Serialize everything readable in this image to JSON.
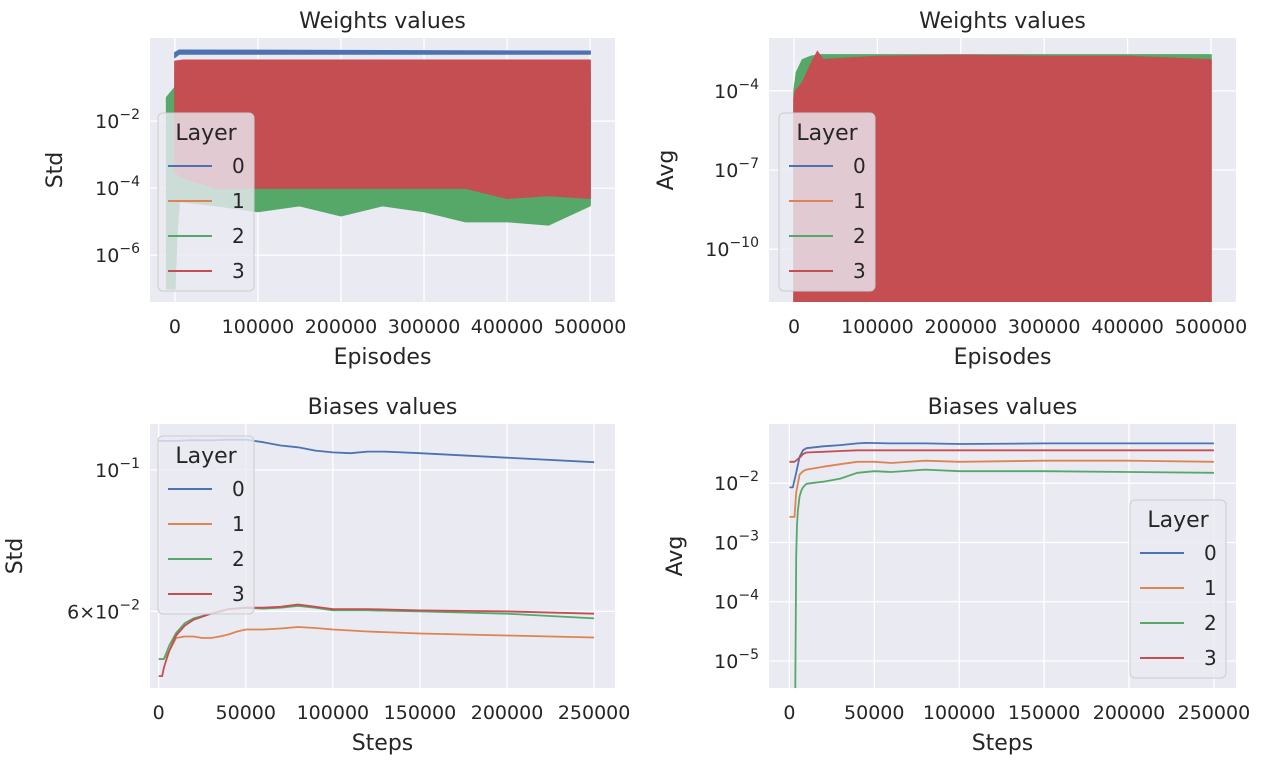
{
  "chart_data": [
    {
      "type": "area",
      "title": "Weights values",
      "xlabel": "Episodes",
      "ylabel": "Std",
      "yscale": "log",
      "xlim": [
        -30000,
        530000
      ],
      "ylim": [
        4e-08,
        3
      ],
      "grid": true,
      "x_ticks": [
        {
          "value": 0,
          "label": "0"
        },
        {
          "value": 100000,
          "label": "100000"
        },
        {
          "value": 200000,
          "label": "200000"
        },
        {
          "value": 300000,
          "label": "300000"
        },
        {
          "value": 400000,
          "label": "400000"
        },
        {
          "value": 500000,
          "label": "500000"
        }
      ],
      "y_ticks": [
        {
          "value": 0.01,
          "base": "10",
          "exp": "−2"
        },
        {
          "value": 0.0001,
          "base": "10",
          "exp": "−4"
        },
        {
          "value": 1e-06,
          "base": "10",
          "exp": "−6"
        }
      ],
      "legend": {
        "title": "Layer",
        "placement": "center-left"
      },
      "series": [
        {
          "name": "0",
          "color": "#4c72b0",
          "mode": "band",
          "x": [
            0,
            5000,
            500000
          ],
          "low": [
            0.8,
            1.0,
            1.0
          ],
          "high": [
            1.1,
            1.3,
            1.2
          ]
        },
        {
          "name": "1",
          "color": "#dd8452",
          "mode": "band",
          "x": [
            0,
            500000
          ],
          "low": [
            0.02,
            0.05
          ],
          "high": [
            0.3,
            0.5
          ]
        },
        {
          "name": "2",
          "color": "#55a868",
          "mode": "band",
          "x": [
            -10000,
            0,
            2000,
            5000,
            50000,
            100000,
            150000,
            200000,
            250000,
            300000,
            350000,
            400000,
            450000,
            500000
          ],
          "low": [
            1e-07,
            1e-07,
            3e-06,
            4e-05,
            3e-05,
            2e-05,
            3e-05,
            1.5e-05,
            3e-05,
            2e-05,
            1e-05,
            1e-05,
            8e-06,
            3e-05
          ],
          "high": [
            0.05,
            0.1,
            0.2,
            0.3,
            0.3,
            0.3,
            0.3,
            0.3,
            0.3,
            0.3,
            0.3,
            0.3,
            0.3,
            0.3
          ]
        },
        {
          "name": "3",
          "color": "#c44e52",
          "mode": "band",
          "x": [
            0,
            10000,
            50000,
            100000,
            150000,
            200000,
            250000,
            300000,
            350000,
            400000,
            450000,
            500000
          ],
          "low": [
            0.0003,
            0.0002,
            0.0001,
            0.0001,
            0.0001,
            0.0001,
            0.0001,
            0.0001,
            0.0001,
            5e-05,
            6e-05,
            5e-05
          ],
          "high": [
            0.6,
            0.65,
            0.65,
            0.65,
            0.65,
            0.65,
            0.65,
            0.65,
            0.65,
            0.65,
            0.65,
            0.65
          ]
        }
      ]
    },
    {
      "type": "area",
      "title": "Weights values",
      "xlabel": "Episodes",
      "ylabel": "Avg",
      "yscale": "log",
      "xlim": [
        -30000,
        530000
      ],
      "ylim": [
        1e-12,
        0.01
      ],
      "grid": true,
      "x_ticks": [
        {
          "value": 0,
          "label": "0"
        },
        {
          "value": 100000,
          "label": "100000"
        },
        {
          "value": 200000,
          "label": "200000"
        },
        {
          "value": 300000,
          "label": "300000"
        },
        {
          "value": 400000,
          "label": "400000"
        },
        {
          "value": 500000,
          "label": "500000"
        }
      ],
      "y_ticks": [
        {
          "value": 0.0001,
          "base": "10",
          "exp": "−4"
        },
        {
          "value": 1e-07,
          "base": "10",
          "exp": "−7"
        },
        {
          "value": 1e-10,
          "base": "10",
          "exp": "−10"
        }
      ],
      "legend": {
        "title": "Layer",
        "placement": "center-left"
      },
      "series": [
        {
          "name": "0",
          "color": "#4c72b0",
          "mode": "band",
          "x": [],
          "low": [],
          "high": []
        },
        {
          "name": "1",
          "color": "#dd8452",
          "mode": "band",
          "x": [],
          "low": [],
          "high": []
        },
        {
          "name": "2",
          "color": "#55a868",
          "mode": "band",
          "x": [
            0,
            3000,
            10000,
            20000,
            30000,
            500000
          ],
          "low": [
            1e-12,
            1e-12,
            1e-12,
            1e-12,
            1e-12,
            1e-12
          ],
          "high": [
            0.0001,
            0.0005,
            0.0015,
            0.002,
            0.0023,
            0.0023
          ]
        },
        {
          "name": "3",
          "color": "#c44e52",
          "mode": "band",
          "x": [
            0,
            2000,
            10000,
            20000,
            28000,
            35000,
            100000,
            200000,
            300000,
            400000,
            500000
          ],
          "low": [
            1e-12,
            1e-12,
            1e-12,
            1e-12,
            1e-12,
            1e-12,
            1e-12,
            1e-12,
            1e-12,
            1e-12,
            1e-12
          ],
          "high": [
            5e-05,
            0.0001,
            0.0002,
            0.001,
            0.003,
            0.0015,
            0.002,
            0.0022,
            0.002,
            0.002,
            0.0015
          ]
        }
      ]
    },
    {
      "type": "line",
      "title": "Biases values",
      "xlabel": "Steps",
      "ylabel": "Std",
      "yscale": "log",
      "xlim": [
        -5000,
        262000
      ],
      "ylim": [
        0.0455,
        0.118
      ],
      "grid": true,
      "x_ticks": [
        {
          "value": 0,
          "label": "0"
        },
        {
          "value": 50000,
          "label": "50000"
        },
        {
          "value": 100000,
          "label": "100000"
        },
        {
          "value": 150000,
          "label": "150000"
        },
        {
          "value": 200000,
          "label": "200000"
        },
        {
          "value": 250000,
          "label": "250000"
        }
      ],
      "y_ticks": [
        {
          "value": 0.1,
          "base": "10",
          "exp": "−1"
        },
        {
          "value": 0.06,
          "mant": "6",
          "base": "10",
          "exp": "−2"
        }
      ],
      "legend": {
        "title": "Layer",
        "placement": "upper-left"
      },
      "series": [
        {
          "name": "0",
          "color": "#4c72b0",
          "mode": "line",
          "x": [
            0,
            10000,
            20000,
            30000,
            40000,
            50000,
            60000,
            70000,
            80000,
            90000,
            100000,
            110000,
            120000,
            130000,
            150000,
            200000,
            250000
          ],
          "y": [
            0.111,
            0.111,
            0.1113,
            0.1112,
            0.1115,
            0.1115,
            0.1105,
            0.1092,
            0.1085,
            0.1072,
            0.1065,
            0.1062,
            0.1068,
            0.1068,
            0.1062,
            0.1045,
            0.1028
          ]
        },
        {
          "name": "1",
          "color": "#dd8452",
          "mode": "line",
          "x": [
            0,
            3000,
            6000,
            10000,
            15000,
            20000,
            25000,
            30000,
            35000,
            40000,
            45000,
            50000,
            60000,
            70000,
            80000,
            90000,
            100000,
            120000,
            150000,
            200000,
            250000
          ],
          "y": [
            0.0505,
            0.0505,
            0.052,
            0.0545,
            0.0548,
            0.0548,
            0.0545,
            0.0545,
            0.0548,
            0.0552,
            0.0558,
            0.0562,
            0.0562,
            0.0564,
            0.0567,
            0.0565,
            0.0562,
            0.0558,
            0.0554,
            0.055,
            0.0546
          ]
        },
        {
          "name": "2",
          "color": "#55a868",
          "mode": "line",
          "x": [
            0,
            3000,
            6000,
            10000,
            15000,
            20000,
            30000,
            40000,
            50000,
            60000,
            70000,
            80000,
            90000,
            100000,
            120000,
            150000,
            200000,
            250000
          ],
          "y": [
            0.0505,
            0.0505,
            0.053,
            0.0555,
            0.0575,
            0.0585,
            0.0595,
            0.0605,
            0.0608,
            0.0606,
            0.0608,
            0.0612,
            0.0608,
            0.0602,
            0.0602,
            0.06,
            0.0595,
            0.0585
          ]
        },
        {
          "name": "3",
          "color": "#c44e52",
          "mode": "line",
          "x": [
            0,
            2000,
            3000,
            6000,
            10000,
            15000,
            20000,
            30000,
            40000,
            50000,
            60000,
            70000,
            80000,
            90000,
            100000,
            120000,
            150000,
            200000,
            250000
          ],
          "y": [
            0.0475,
            0.0475,
            0.049,
            0.052,
            0.055,
            0.057,
            0.0582,
            0.0595,
            0.0605,
            0.0608,
            0.0608,
            0.061,
            0.0615,
            0.061,
            0.0605,
            0.0605,
            0.0602,
            0.06,
            0.0595
          ]
        }
      ]
    },
    {
      "type": "line",
      "title": "Biases values",
      "xlabel": "Steps",
      "ylabel": "Avg",
      "yscale": "log",
      "xlim": [
        -12000,
        263000
      ],
      "ylim": [
        3.5e-06,
        0.1
      ],
      "grid": true,
      "x_ticks": [
        {
          "value": 0,
          "label": "0"
        },
        {
          "value": 50000,
          "label": "50000"
        },
        {
          "value": 100000,
          "label": "100000"
        },
        {
          "value": 150000,
          "label": "150000"
        },
        {
          "value": 200000,
          "label": "200000"
        },
        {
          "value": 250000,
          "label": "250000"
        }
      ],
      "y_ticks": [
        {
          "value": 0.01,
          "base": "10",
          "exp": "−2"
        },
        {
          "value": 0.001,
          "base": "10",
          "exp": "−3"
        },
        {
          "value": 0.0001,
          "base": "10",
          "exp": "−4"
        },
        {
          "value": 1e-05,
          "base": "10",
          "exp": "−5"
        }
      ],
      "legend": {
        "title": "Layer",
        "placement": "center-right"
      },
      "series": [
        {
          "name": "0",
          "color": "#4c72b0",
          "mode": "line",
          "x": [
            0,
            2000,
            4000,
            6000,
            8000,
            10000,
            20000,
            30000,
            40000,
            45000,
            60000,
            80000,
            100000,
            150000,
            200000,
            250000
          ],
          "y": [
            0.0085,
            0.0085,
            0.015,
            0.028,
            0.036,
            0.039,
            0.042,
            0.044,
            0.047,
            0.048,
            0.047,
            0.047,
            0.046,
            0.047,
            0.047,
            0.047
          ]
        },
        {
          "name": "1",
          "color": "#dd8452",
          "mode": "line",
          "x": [
            0,
            3000,
            4000,
            6000,
            8000,
            10000,
            20000,
            30000,
            40000,
            50000,
            60000,
            80000,
            100000,
            150000,
            200000,
            250000
          ],
          "y": [
            0.0027,
            0.0027,
            0.007,
            0.014,
            0.016,
            0.017,
            0.019,
            0.021,
            0.023,
            0.023,
            0.022,
            0.024,
            0.023,
            0.024,
            0.024,
            0.023
          ]
        },
        {
          "name": "2",
          "color": "#55a868",
          "mode": "line",
          "x": [
            3500,
            4000,
            4500,
            5000,
            6000,
            7000,
            8000,
            10000,
            15000,
            20000,
            30000,
            40000,
            50000,
            60000,
            80000,
            100000,
            150000,
            200000,
            250000
          ],
          "y": [
            3.5e-06,
            0.0006,
            0.002,
            0.0035,
            0.006,
            0.0075,
            0.0085,
            0.0098,
            0.0102,
            0.0106,
            0.012,
            0.015,
            0.016,
            0.0155,
            0.017,
            0.016,
            0.016,
            0.0155,
            0.015
          ]
        },
        {
          "name": "3",
          "color": "#c44e52",
          "mode": "line",
          "x": [
            0,
            3000,
            6000,
            8000,
            10000,
            20000,
            30000,
            40000,
            50000,
            100000,
            150000,
            200000,
            250000
          ],
          "y": [
            0.023,
            0.023,
            0.027,
            0.031,
            0.033,
            0.034,
            0.035,
            0.036,
            0.036,
            0.036,
            0.036,
            0.036,
            0.036
          ]
        }
      ]
    }
  ]
}
